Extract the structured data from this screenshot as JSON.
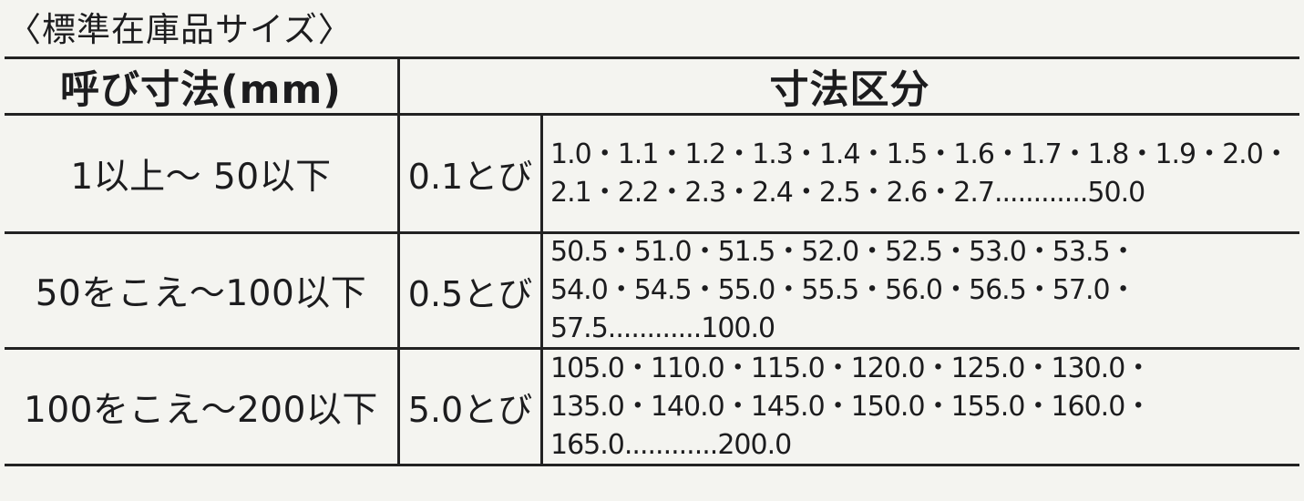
{
  "title": "〈標準在庫品サイズ〉",
  "table": {
    "headers": {
      "nominal": "呼び寸法(mm)",
      "category": "寸法区分"
    },
    "rows": [
      {
        "range": "1以上～ 50以下",
        "step": "0.1とび",
        "lines": [
          "1.0・1.1・1.2・1.3・1.4・1.5・1.6・1.7・1.8・1.9・2.0・",
          "2.1・2.2・2.3・2.4・2.5・2.6・2.7............50.0"
        ]
      },
      {
        "range": "50をこえ～100以下",
        "step": "0.5とび",
        "lines": [
          "50.5・51.0・51.5・52.0・52.5・53.0・53.5・",
          "54.0・54.5・55.0・55.5・56.0・56.5・57.0・",
          "57.5............100.0"
        ]
      },
      {
        "range": "100をこえ～200以下",
        "step": "5.0とび",
        "lines": [
          "105.0・110.0・115.0・120.0・125.0・130.0・",
          "135.0・140.0・145.0・150.0・155.0・160.0・",
          "165.0............200.0"
        ]
      }
    ]
  },
  "colors": {
    "ink": "#1c1c1e",
    "paper": "#f4f4f0",
    "rule": "#222222"
  }
}
